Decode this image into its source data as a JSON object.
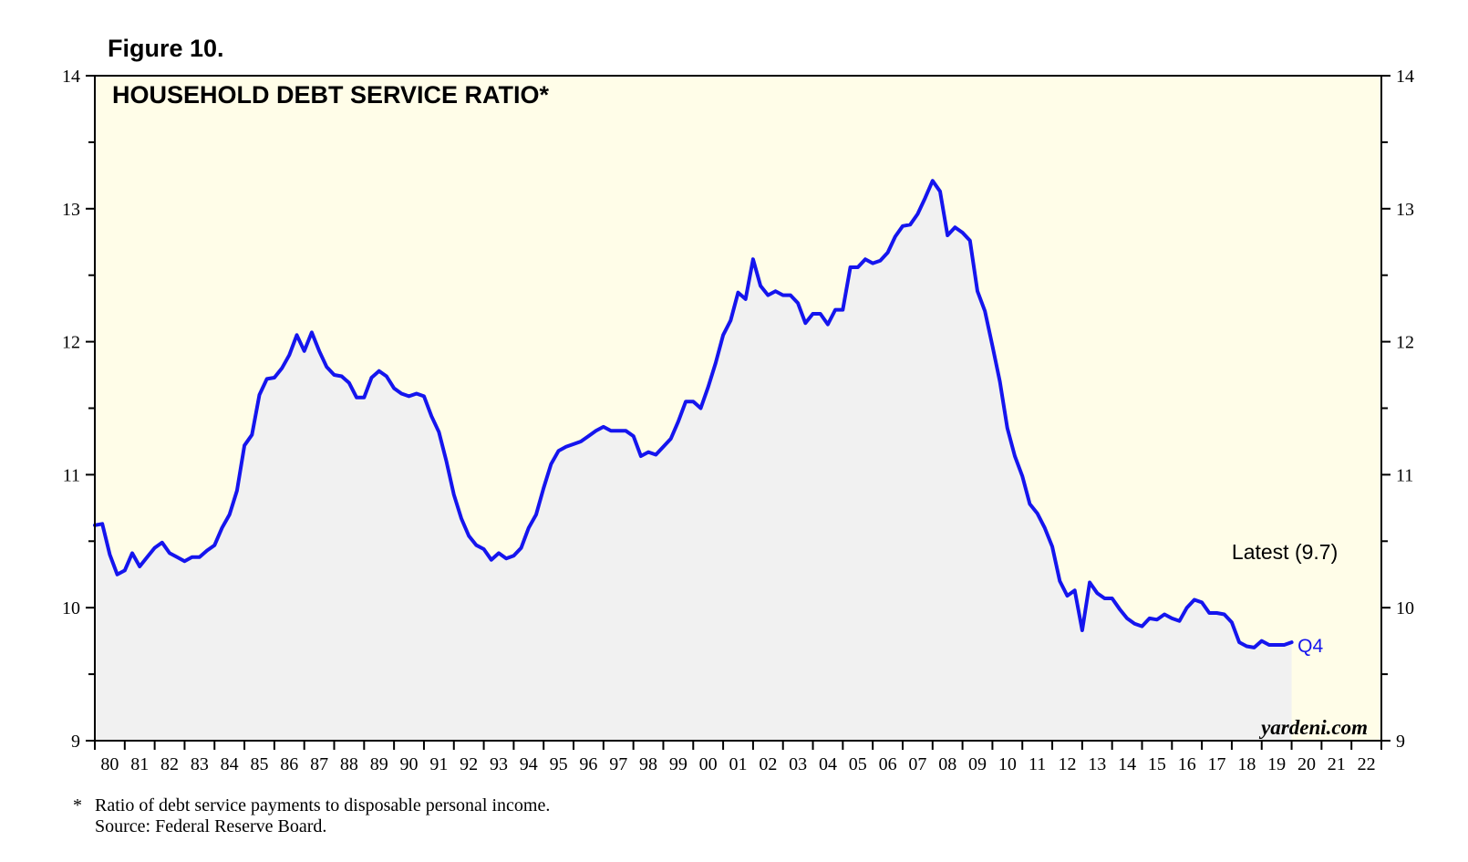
{
  "figure_label": "Figure 10.",
  "watermark": "yardeni.com",
  "footnote": {
    "mark": "*",
    "text": "Ratio of debt service payments to disposable personal income.",
    "source": "Source: Federal Reserve Board."
  },
  "colors": {
    "plot_background": "#fffde8",
    "area_fill": "#f1f1f1",
    "line": "#1515ee",
    "axis": "#000000"
  },
  "chart_data": {
    "type": "line",
    "title": "HOUSEHOLD DEBT SERVICE RATIO*",
    "ylim": [
      9,
      14
    ],
    "yticks": [
      9,
      10,
      11,
      12,
      13,
      14
    ],
    "y_minor_step": 0.5,
    "xlim": [
      1980,
      2023
    ],
    "x_tick_labels": [
      "80",
      "81",
      "82",
      "83",
      "84",
      "85",
      "86",
      "87",
      "88",
      "89",
      "90",
      "91",
      "92",
      "93",
      "94",
      "95",
      "96",
      "97",
      "98",
      "99",
      "00",
      "01",
      "02",
      "03",
      "04",
      "05",
      "06",
      "07",
      "08",
      "09",
      "10",
      "11",
      "12",
      "13",
      "14",
      "15",
      "16",
      "17",
      "18",
      "19",
      "20",
      "21",
      "22"
    ],
    "grid": false,
    "dual_y_axis": true,
    "area_under_line": true,
    "annotations": [
      {
        "text": "Latest (9.7)",
        "x": 2018.0,
        "y": 10.42
      },
      {
        "text": "Q4",
        "x": 2020.2,
        "y": 9.72
      }
    ],
    "series": [
      {
        "x_start": 1980.0,
        "x_step": 0.25,
        "values": [
          10.62,
          10.63,
          10.4,
          10.25,
          10.28,
          10.41,
          10.31,
          10.38,
          10.45,
          10.49,
          10.41,
          10.38,
          10.35,
          10.38,
          10.38,
          10.43,
          10.47,
          10.6,
          10.7,
          10.88,
          11.22,
          11.3,
          11.6,
          11.72,
          11.73,
          11.8,
          11.9,
          12.05,
          11.93,
          12.07,
          11.93,
          11.81,
          11.75,
          11.74,
          11.69,
          11.58,
          11.58,
          11.73,
          11.78,
          11.74,
          11.65,
          11.61,
          11.59,
          11.61,
          11.59,
          11.44,
          11.32,
          11.1,
          10.85,
          10.67,
          10.54,
          10.47,
          10.44,
          10.36,
          10.41,
          10.37,
          10.39,
          10.45,
          10.6,
          10.7,
          10.9,
          11.08,
          11.18,
          11.21,
          11.23,
          11.25,
          11.29,
          11.33,
          11.36,
          11.33,
          11.33,
          11.33,
          11.29,
          11.14,
          11.17,
          11.15,
          11.21,
          11.27,
          11.4,
          11.55,
          11.55,
          11.5,
          11.66,
          11.84,
          12.05,
          12.16,
          12.37,
          12.32,
          12.62,
          12.42,
          12.35,
          12.38,
          12.35,
          12.35,
          12.29,
          12.14,
          12.21,
          12.21,
          12.13,
          12.24,
          12.24,
          12.56,
          12.56,
          12.62,
          12.59,
          12.61,
          12.67,
          12.79,
          12.87,
          12.88,
          12.96,
          13.08,
          13.21,
          13.13,
          12.8,
          12.86,
          12.82,
          12.76,
          12.38,
          12.23,
          11.97,
          11.7,
          11.35,
          11.14,
          10.99,
          10.78,
          10.71,
          10.6,
          10.46,
          10.2,
          10.09,
          10.13,
          9.83,
          10.19,
          10.11,
          10.07,
          10.07,
          9.99,
          9.92,
          9.88,
          9.86,
          9.92,
          9.91,
          9.95,
          9.92,
          9.9,
          10.0,
          10.06,
          10.04,
          9.96,
          9.96,
          9.95,
          9.89,
          9.74,
          9.71,
          9.7,
          9.75,
          9.72,
          9.72,
          9.72,
          9.74
        ]
      }
    ]
  }
}
